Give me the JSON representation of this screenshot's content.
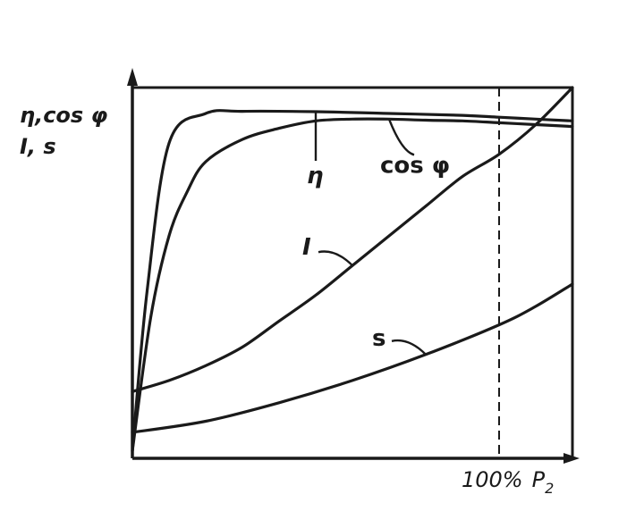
{
  "chart_data": {
    "type": "line",
    "title": "",
    "ylabel_line1": "η,cos φ",
    "ylabel_line2": "I, s",
    "xlabel_percent": "100%",
    "xlabel_symbol": "P",
    "xlabel_subscript": "2",
    "x_unit": "fraction of rated output P2",
    "xlim": [
      0,
      1.2
    ],
    "ylim": [
      0,
      1.0
    ],
    "rated_marker_x": 1.0,
    "grid": false,
    "legend": "none (curves labelled directly)",
    "line_color": "#1a1a1a",
    "series": [
      {
        "name": "η",
        "x": [
          0,
          0.04,
          0.1,
          0.2,
          0.3,
          0.5,
          0.7,
          0.9,
          1.0,
          1.1,
          1.2
        ],
        "values": [
          0.02,
          0.45,
          0.85,
          0.93,
          0.936,
          0.935,
          0.93,
          0.925,
          0.92,
          0.915,
          0.91
        ]
      },
      {
        "name": "cos φ",
        "x": [
          0,
          0.05,
          0.1,
          0.15,
          0.2,
          0.3,
          0.4,
          0.5,
          0.6,
          0.7,
          0.8,
          0.9,
          1.0,
          1.1,
          1.2
        ],
        "values": [
          0.02,
          0.38,
          0.6,
          0.72,
          0.8,
          0.86,
          0.89,
          0.91,
          0.915,
          0.915,
          0.912,
          0.91,
          0.905,
          0.9,
          0.895
        ]
      },
      {
        "name": "I",
        "x": [
          0,
          0.1,
          0.2,
          0.3,
          0.4,
          0.5,
          0.6,
          0.7,
          0.8,
          0.9,
          1.0,
          1.1,
          1.2
        ],
        "values": [
          0.18,
          0.21,
          0.25,
          0.3,
          0.37,
          0.44,
          0.52,
          0.6,
          0.68,
          0.76,
          0.82,
          0.9,
          1.0
        ]
      },
      {
        "name": "s",
        "x": [
          0,
          0.2,
          0.4,
          0.6,
          0.8,
          1.0,
          1.1,
          1.2
        ],
        "values": [
          0.07,
          0.1,
          0.15,
          0.21,
          0.28,
          0.36,
          0.41,
          0.47
        ]
      }
    ],
    "labels": [
      {
        "text": "η",
        "series": "η",
        "at_x": 0.5,
        "style": "italic"
      },
      {
        "text": "cos φ",
        "series": "cos φ",
        "at_x": 0.7,
        "style": "bold"
      },
      {
        "text": "I",
        "series": "I",
        "at_x": 0.6,
        "style": "italic"
      },
      {
        "text": "s",
        "series": "s",
        "at_x": 0.8,
        "style": "bold"
      }
    ]
  }
}
